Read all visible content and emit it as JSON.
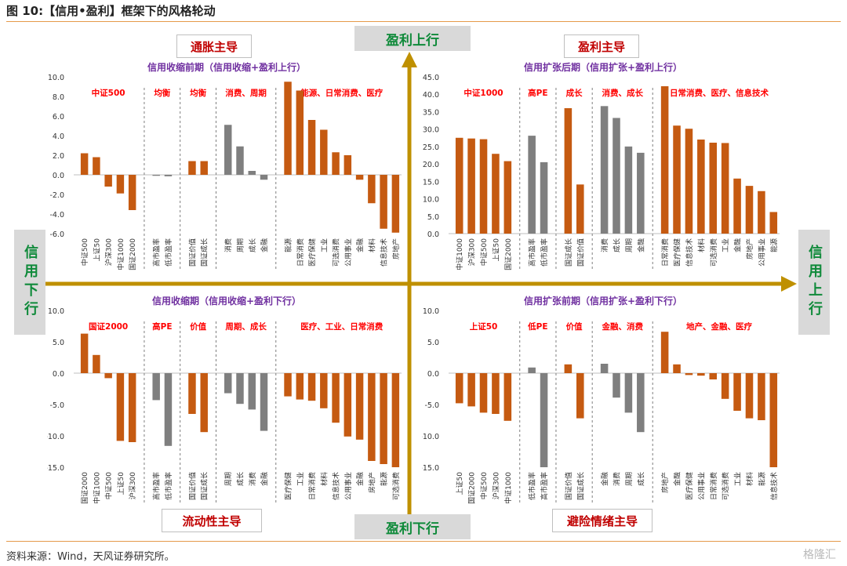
{
  "page": {
    "figure_title": "图 10:【信用•盈利】框架下的风格轮动",
    "source": "资料来源：Wind，天风证券研究所。",
    "watermark": "格隆汇",
    "axis_labels": {
      "top": "盈利上行",
      "bottom": "盈利下行",
      "left": "信用下行",
      "right": "信用上行"
    },
    "regimes": {
      "top_left": "通胀主导",
      "top_right": "盈利主导",
      "bottom_left": "流动性主导",
      "bottom_right": "避险情绪主导"
    },
    "colors": {
      "orange": "#c55a11",
      "gray": "#7f7f7f",
      "axis_arrow": "#bf9000",
      "axis_text": "#0f8a3a",
      "label_red": "#ff0000",
      "title_purple": "#7030a0"
    }
  },
  "chart_data": [
    {
      "type": "bar",
      "title": "信用收缩前期（信用收缩+盈利上行）",
      "yticks": [
        "10.0",
        "8.0",
        "6.0",
        "4.0",
        "2.0",
        "0.0",
        "-2.0",
        "-4.0",
        "-6.0"
      ],
      "ylim": [
        -6,
        10
      ],
      "groups": [
        {
          "label": "中证500",
          "categories": [
            "中证500",
            "上证50",
            "沪深300",
            "中证1000",
            "国证2000"
          ],
          "values": [
            2.2,
            1.8,
            -1.2,
            -1.9,
            -3.6
          ],
          "color": "orange"
        },
        {
          "label": "均衡",
          "categories": [
            "高市盈率",
            "低市盈率"
          ],
          "values": [
            -0.1,
            -0.15
          ],
          "color": "gray"
        },
        {
          "label": "均衡",
          "categories": [
            "国证价值",
            "国证成长"
          ],
          "values": [
            1.4,
            1.4
          ],
          "color": "orange"
        },
        {
          "label": "消费、周期",
          "categories": [
            "消费",
            "周期",
            "成长",
            "金融"
          ],
          "values": [
            5.1,
            2.9,
            0.4,
            -0.5
          ],
          "color": "gray"
        },
        {
          "label": "能源、日常消费、医疗",
          "categories": [
            "能源",
            "日常消费",
            "医疗保健",
            "工业",
            "可选消费",
            "公用事业",
            "金融",
            "材料",
            "信息技术",
            "房地产"
          ],
          "values": [
            9.5,
            8.6,
            5.6,
            4.6,
            2.3,
            2.0,
            -0.5,
            -2.9,
            -5.5,
            -5.9
          ],
          "color": "orange"
        }
      ]
    },
    {
      "type": "bar",
      "title": "信用扩张后期（信用扩张+盈利上行）",
      "yticks": [
        "45.0",
        "40.0",
        "35.0",
        "30.0",
        "25.0",
        "20.0",
        "15.0",
        "10.0",
        "5.0",
        "0.0"
      ],
      "ylim": [
        0,
        45
      ],
      "groups": [
        {
          "label": "中证1000",
          "categories": [
            "中证1000",
            "沪深300",
            "中证500",
            "上证50",
            "国证2000"
          ],
          "values": [
            27.5,
            27.3,
            27.1,
            22.9,
            20.8
          ],
          "color": "orange"
        },
        {
          "label": "高PE",
          "categories": [
            "高市盈率",
            "低市盈率"
          ],
          "values": [
            28.1,
            20.5
          ],
          "color": "gray"
        },
        {
          "label": "成长",
          "categories": [
            "国证成长",
            "国证价值"
          ],
          "values": [
            36.0,
            14.1
          ],
          "color": "orange"
        },
        {
          "label": "消费、成长",
          "categories": [
            "消费",
            "成长",
            "周期",
            "金融"
          ],
          "values": [
            36.6,
            33.2,
            25.0,
            23.2
          ],
          "color": "gray"
        },
        {
          "label": "日常消费、医疗、信息技术",
          "categories": [
            "日常消费",
            "医疗保健",
            "信息技术",
            "材料",
            "可选消费",
            "工业",
            "金融",
            "房地产",
            "公用事业",
            "能源"
          ],
          "values": [
            42.3,
            31.0,
            30.1,
            27.0,
            26.1,
            26.0,
            15.8,
            13.7,
            12.2,
            6.2
          ],
          "color": "orange"
        }
      ]
    },
    {
      "type": "bar",
      "title": "信用收缩期（信用收缩+盈利下行）",
      "yticks": [
        "10.0",
        "5.0",
        "0.0",
        "-5.0",
        "-10.0",
        "-15.0"
      ],
      "ylim": [
        -15,
        10
      ],
      "groups": [
        {
          "label": "国证2000",
          "categories": [
            "国证2000",
            "中证1000",
            "中证500",
            "上证50",
            "沪深300"
          ],
          "values": [
            6.3,
            2.9,
            -0.8,
            -10.8,
            -11.0
          ],
          "color": "orange"
        },
        {
          "label": "高PE",
          "categories": [
            "高市盈率",
            "低市盈率"
          ],
          "values": [
            -4.3,
            -11.6
          ],
          "color": "gray"
        },
        {
          "label": "价值",
          "categories": [
            "国证价值",
            "国证成长"
          ],
          "values": [
            -6.5,
            -9.4
          ],
          "color": "orange"
        },
        {
          "label": "周期、成长",
          "categories": [
            "周期",
            "成长",
            "消费",
            "金融"
          ],
          "values": [
            -3.2,
            -4.9,
            -5.8,
            -9.2
          ],
          "color": "gray"
        },
        {
          "label": "医疗、工业、日常消费",
          "categories": [
            "医疗保健",
            "工业",
            "日常消费",
            "材料",
            "信息技术",
            "公用事业",
            "金融",
            "房地产",
            "能源",
            "可选消费"
          ],
          "values": [
            -3.7,
            -4.2,
            -4.4,
            -5.6,
            -7.9,
            -10.1,
            -10.6,
            -14.0,
            -14.5,
            -15.0
          ],
          "color": "orange"
        }
      ]
    },
    {
      "type": "bar",
      "title": "信用扩张前期（信用扩张+盈利下行）",
      "yticks": [
        "10.0",
        "5.0",
        "0.0",
        "-5.0",
        "-10.0",
        "-15.0"
      ],
      "ylim": [
        -15,
        10
      ],
      "groups": [
        {
          "label": "上证50",
          "categories": [
            "上证50",
            "国证2000",
            "中证500",
            "沪深300",
            "中证1000"
          ],
          "values": [
            -4.8,
            -5.3,
            -6.3,
            -6.5,
            -7.6
          ],
          "color": "orange"
        },
        {
          "label": "低PE",
          "categories": [
            "低市盈率",
            "高市盈率"
          ],
          "values": [
            0.9,
            -15.0
          ],
          "color": "gray"
        },
        {
          "label": "价值",
          "categories": [
            "国证价值",
            "国证成长"
          ],
          "values": [
            1.4,
            -7.2
          ],
          "color": "orange"
        },
        {
          "label": "金融、消费",
          "categories": [
            "金融",
            "消费",
            "周期",
            "成长"
          ],
          "values": [
            1.5,
            -3.9,
            -6.3,
            -9.4
          ],
          "color": "gray"
        },
        {
          "label": "地产、金融、医疗",
          "categories": [
            "房地产",
            "金融",
            "医疗保健",
            "公用事业",
            "日常消费",
            "可选消费",
            "工业",
            "材料",
            "能源",
            "信息技术"
          ],
          "values": [
            6.6,
            1.4,
            -0.3,
            -0.4,
            -1.0,
            -4.1,
            -6.0,
            -7.2,
            -7.5,
            -15.0
          ],
          "color": "orange"
        }
      ]
    }
  ]
}
